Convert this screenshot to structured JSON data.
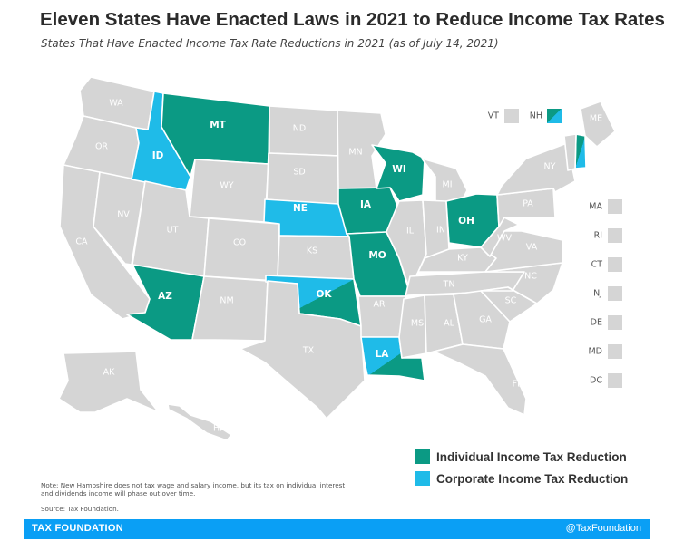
{
  "title": "Eleven States Have Enacted Laws in 2021 to Reduce Income Tax Rates",
  "subtitle": "States That Have Enacted Income Tax Rate Reductions in 2021 (as of July 14, 2021)",
  "colors": {
    "individual": "#0b9a84",
    "corporate": "#1fbbe8",
    "none": "#d5d5d5",
    "footer": "#0a9ff5"
  },
  "states": [
    {
      "id": "WA",
      "label": "WA",
      "status": "none"
    },
    {
      "id": "OR",
      "label": "OR",
      "status": "none"
    },
    {
      "id": "CA",
      "label": "CA",
      "status": "none"
    },
    {
      "id": "NV",
      "label": "NV",
      "status": "none"
    },
    {
      "id": "ID",
      "label": "ID",
      "status": "corporate"
    },
    {
      "id": "MT",
      "label": "MT",
      "status": "individual"
    },
    {
      "id": "WY",
      "label": "WY",
      "status": "none"
    },
    {
      "id": "UT",
      "label": "UT",
      "status": "none"
    },
    {
      "id": "AZ",
      "label": "AZ",
      "status": "individual"
    },
    {
      "id": "CO",
      "label": "CO",
      "status": "none"
    },
    {
      "id": "NM",
      "label": "NM",
      "status": "none"
    },
    {
      "id": "ND",
      "label": "ND",
      "status": "none"
    },
    {
      "id": "SD",
      "label": "SD",
      "status": "none"
    },
    {
      "id": "NE",
      "label": "NE",
      "status": "corporate"
    },
    {
      "id": "KS",
      "label": "KS",
      "status": "none"
    },
    {
      "id": "OK",
      "label": "OK",
      "status": "both"
    },
    {
      "id": "TX",
      "label": "TX",
      "status": "none"
    },
    {
      "id": "MN",
      "label": "MN",
      "status": "none"
    },
    {
      "id": "IA",
      "label": "IA",
      "status": "individual"
    },
    {
      "id": "MO",
      "label": "MO",
      "status": "individual"
    },
    {
      "id": "AR",
      "label": "AR",
      "status": "none"
    },
    {
      "id": "LA",
      "label": "LA",
      "status": "both"
    },
    {
      "id": "WI",
      "label": "WI",
      "status": "individual"
    },
    {
      "id": "IL",
      "label": "IL",
      "status": "none"
    },
    {
      "id": "MI",
      "label": "MI",
      "status": "none"
    },
    {
      "id": "IN",
      "label": "IN",
      "status": "none"
    },
    {
      "id": "OH",
      "label": "OH",
      "status": "individual"
    },
    {
      "id": "KY",
      "label": "KY",
      "status": "none"
    },
    {
      "id": "TN",
      "label": "TN",
      "status": "none"
    },
    {
      "id": "MS",
      "label": "MS",
      "status": "none"
    },
    {
      "id": "AL",
      "label": "AL",
      "status": "none"
    },
    {
      "id": "GA",
      "label": "GA",
      "status": "none"
    },
    {
      "id": "FL",
      "label": "FL",
      "status": "none"
    },
    {
      "id": "SC",
      "label": "SC",
      "status": "none"
    },
    {
      "id": "NC",
      "label": "NC",
      "status": "none"
    },
    {
      "id": "VA",
      "label": "VA",
      "status": "none"
    },
    {
      "id": "WV",
      "label": "WV",
      "status": "none"
    },
    {
      "id": "PA",
      "label": "PA",
      "status": "none"
    },
    {
      "id": "NY",
      "label": "NY",
      "status": "none"
    },
    {
      "id": "ME",
      "label": "ME",
      "status": "none"
    },
    {
      "id": "NH",
      "label": "NH",
      "status": "both"
    },
    {
      "id": "VT",
      "label": "VT",
      "status": "none"
    },
    {
      "id": "AK",
      "label": "AK",
      "status": "none"
    },
    {
      "id": "HI",
      "label": "HI",
      "status": "none"
    }
  ],
  "small_states": [
    {
      "id": "VT",
      "label": "VT",
      "status": "none"
    },
    {
      "id": "NH",
      "label": "NH",
      "status": "both"
    },
    {
      "id": "MA",
      "label": "MA",
      "status": "none"
    },
    {
      "id": "RI",
      "label": "RI",
      "status": "none"
    },
    {
      "id": "CT",
      "label": "CT",
      "status": "none"
    },
    {
      "id": "NJ",
      "label": "NJ",
      "status": "none"
    },
    {
      "id": "DE",
      "label": "DE",
      "status": "none"
    },
    {
      "id": "MD",
      "label": "MD",
      "status": "none"
    },
    {
      "id": "DC",
      "label": "DC",
      "status": "none"
    }
  ],
  "legend": [
    {
      "label": "Individual Income Tax Reduction",
      "color": "#0b9a84"
    },
    {
      "label": "Corporate Income Tax Reduction",
      "color": "#1fbbe8"
    }
  ],
  "note": "Note: New Hampshire does not tax wage and salary income, but its tax on individual interest and dividends income will phase out over time.",
  "source": "Source: Tax Foundation.",
  "footer": {
    "left": "TAX FOUNDATION",
    "right": "@TaxFoundation"
  }
}
